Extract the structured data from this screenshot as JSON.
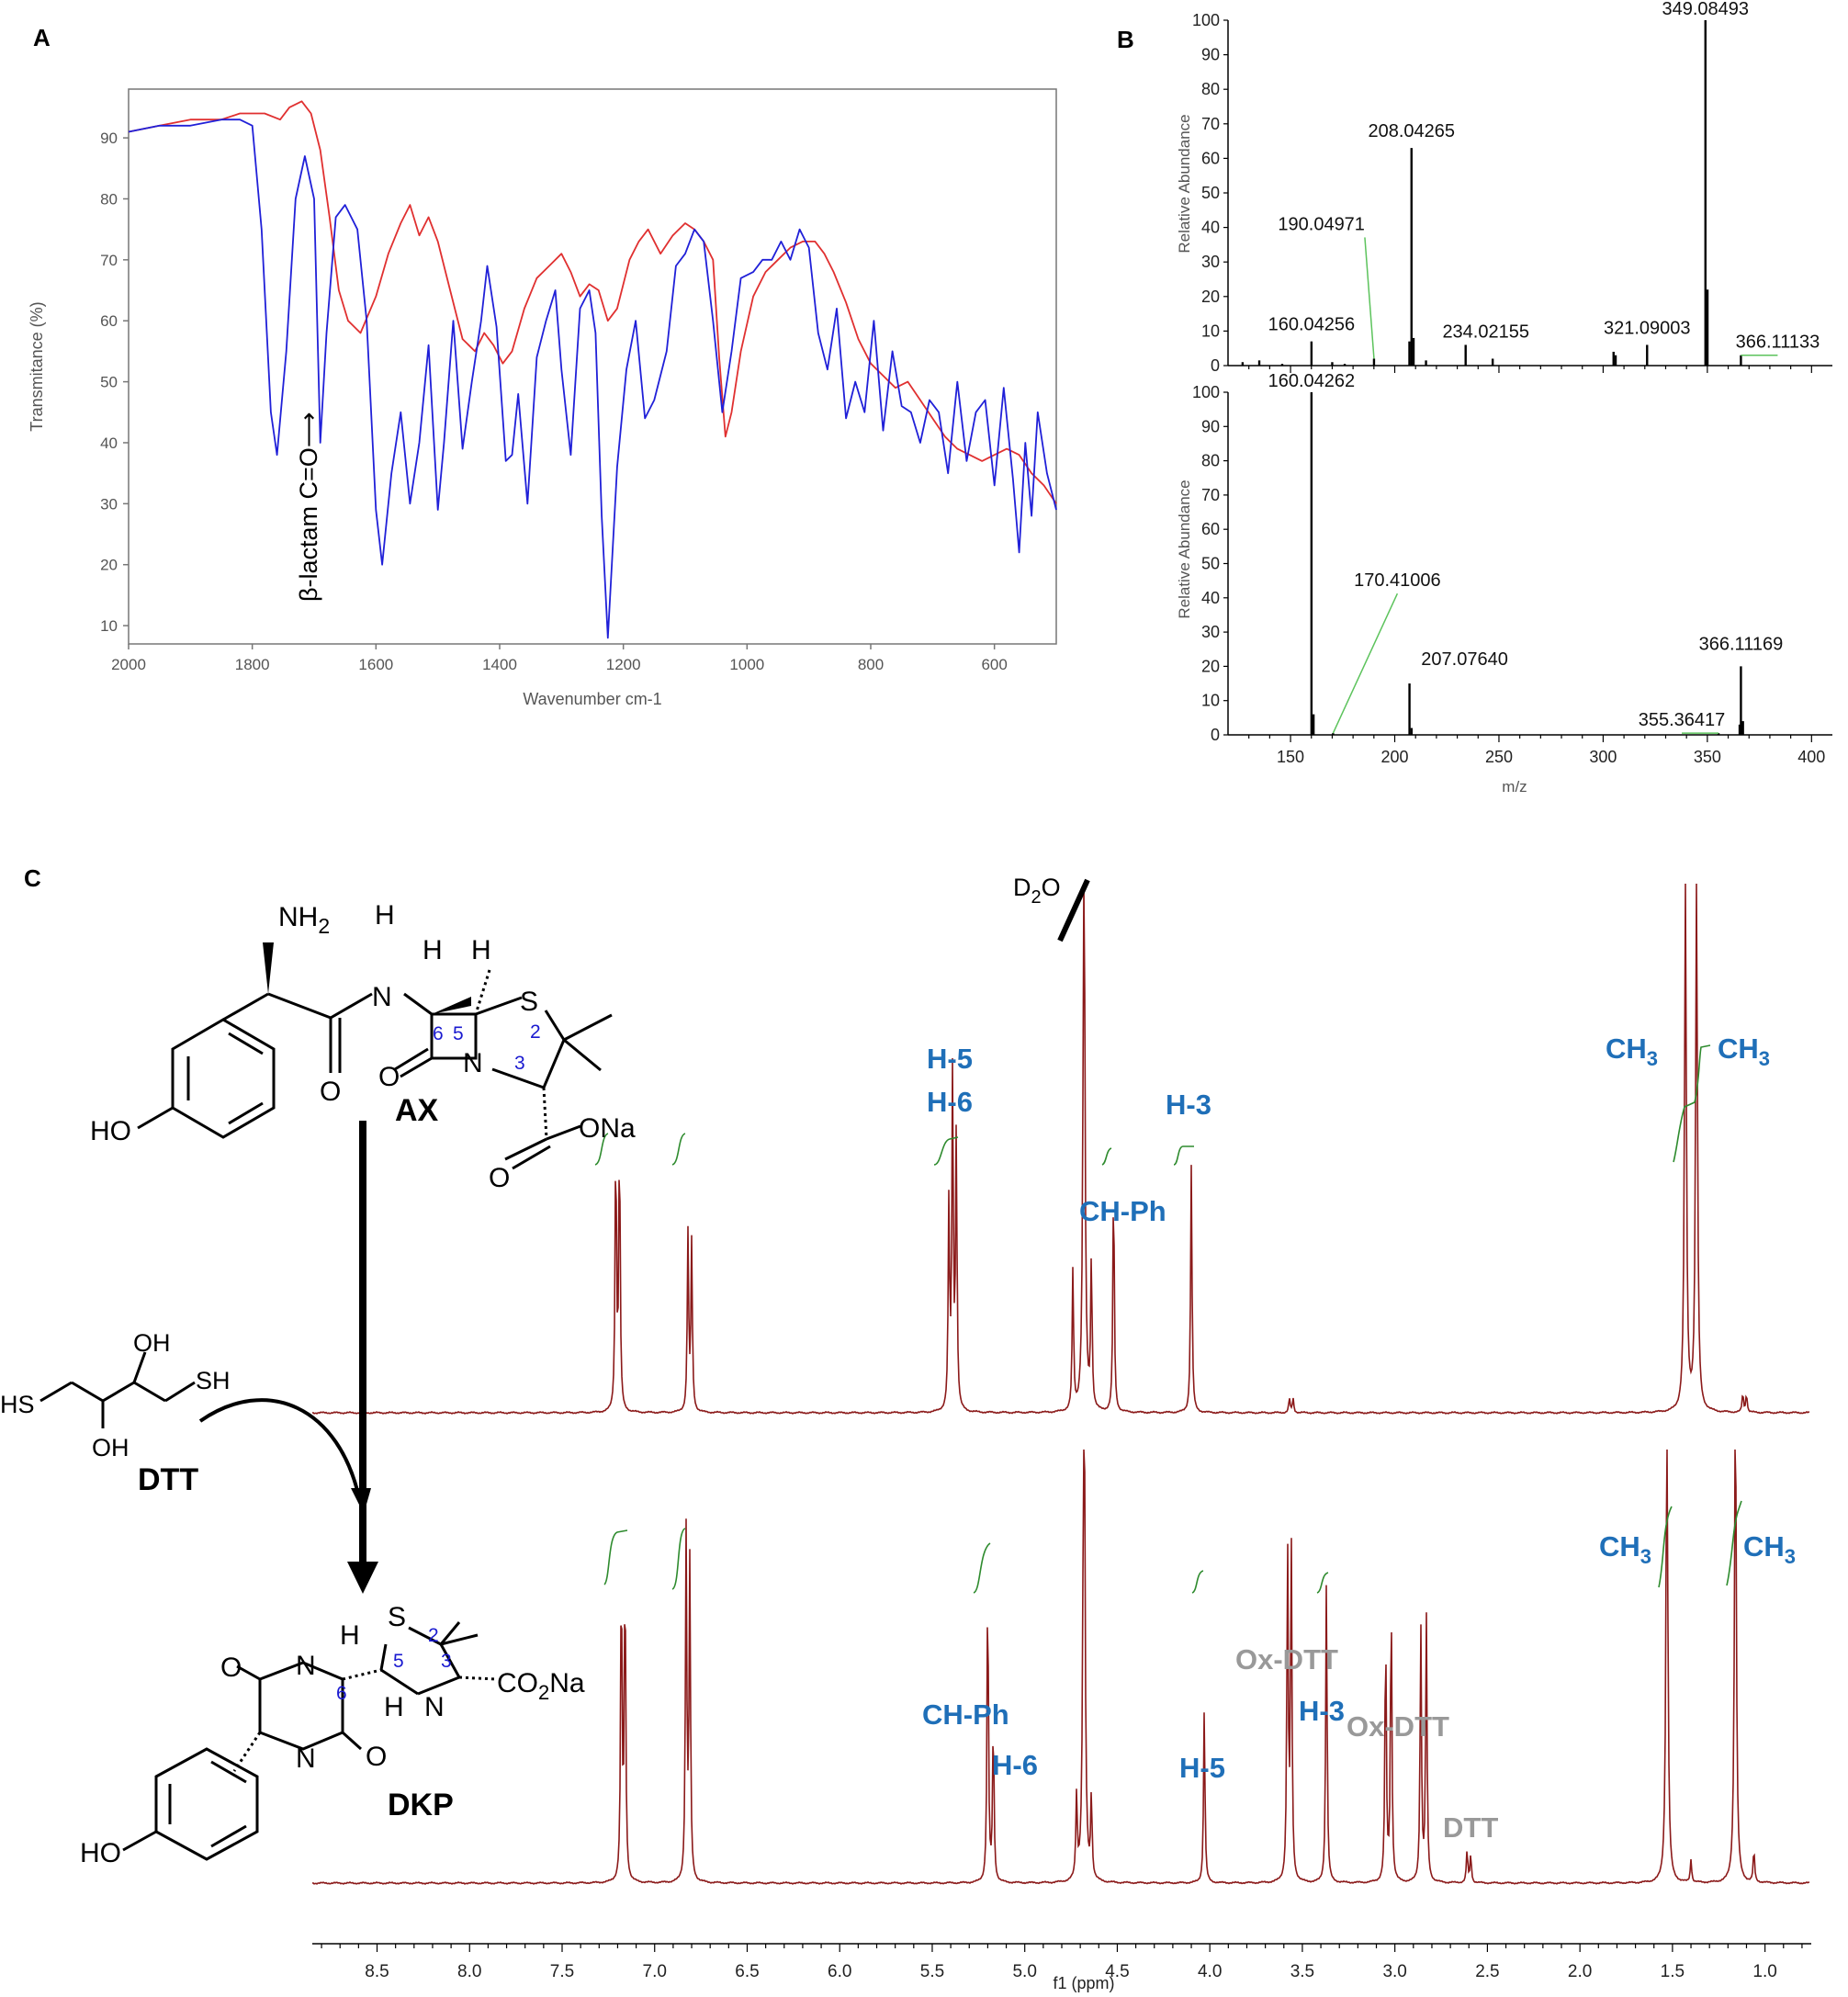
{
  "panels": {
    "a": "A",
    "b": "B",
    "c": "C"
  },
  "chart_data": [
    {
      "type": "line",
      "panel": "A",
      "xlabel": "Wavenumber cm-1",
      "ylabel": "Transmitance (%)",
      "xlim": [
        2000,
        500
      ],
      "ylim": [
        7,
        98
      ],
      "xticks": [
        "2000",
        "1800",
        "1600",
        "1400",
        "1200",
        "1000",
        "800",
        "600"
      ],
      "yticks": [
        "10",
        "20",
        "30",
        "40",
        "50",
        "60",
        "70",
        "80",
        "90"
      ],
      "annotation": "β-lactam C=O⟶",
      "series": [
        {
          "color": "#e03030",
          "x": [
            2000,
            1950,
            1900,
            1850,
            1820,
            1800,
            1780,
            1755,
            1740,
            1720,
            1705,
            1690,
            1675,
            1660,
            1645,
            1625,
            1600,
            1580,
            1560,
            1545,
            1530,
            1515,
            1500,
            1480,
            1460,
            1440,
            1425,
            1410,
            1395,
            1380,
            1360,
            1340,
            1320,
            1300,
            1285,
            1270,
            1255,
            1240,
            1225,
            1210,
            1190,
            1175,
            1160,
            1140,
            1120,
            1100,
            1085,
            1070,
            1055,
            1045,
            1035,
            1025,
            1010,
            990,
            970,
            950,
            930,
            910,
            890,
            875,
            860,
            840,
            820,
            800,
            780,
            760,
            740,
            720,
            700,
            680,
            660,
            640,
            620,
            600,
            580,
            560,
            540,
            520,
            500
          ],
          "y": [
            91,
            92,
            93,
            93,
            94,
            94,
            94,
            93,
            95,
            96,
            94,
            88,
            77,
            65,
            60,
            58,
            64,
            71,
            76,
            79,
            74,
            77,
            73,
            65,
            57,
            55,
            58,
            56,
            53,
            55,
            62,
            67,
            69,
            71,
            68,
            64,
            66,
            65,
            60,
            62,
            70,
            73,
            75,
            71,
            74,
            76,
            75,
            73,
            70,
            54,
            41,
            45,
            55,
            64,
            68,
            70,
            72,
            73,
            73,
            71,
            68,
            63,
            57,
            53,
            51,
            49,
            50,
            47,
            44,
            41,
            39,
            38,
            37,
            38,
            39,
            38,
            35,
            33,
            30
          ]
        },
        {
          "color": "#2020d8",
          "x": [
            2000,
            1950,
            1900,
            1850,
            1820,
            1800,
            1785,
            1770,
            1760,
            1745,
            1730,
            1715,
            1700,
            1690,
            1680,
            1665,
            1650,
            1630,
            1615,
            1600,
            1590,
            1575,
            1560,
            1545,
            1530,
            1515,
            1500,
            1490,
            1475,
            1460,
            1445,
            1430,
            1420,
            1405,
            1390,
            1380,
            1370,
            1355,
            1340,
            1325,
            1310,
            1300,
            1285,
            1270,
            1255,
            1245,
            1235,
            1225,
            1210,
            1195,
            1180,
            1165,
            1150,
            1130,
            1115,
            1100,
            1085,
            1070,
            1055,
            1040,
            1025,
            1010,
            990,
            975,
            960,
            945,
            930,
            915,
            900,
            885,
            870,
            855,
            840,
            825,
            810,
            795,
            780,
            765,
            750,
            735,
            720,
            705,
            690,
            675,
            660,
            645,
            630,
            615,
            600,
            585,
            570,
            560,
            550,
            540,
            530,
            515,
            500
          ],
          "y": [
            91,
            92,
            92,
            93,
            93,
            92,
            75,
            45,
            38,
            55,
            80,
            87,
            80,
            40,
            58,
            77,
            79,
            75,
            60,
            29,
            20,
            35,
            45,
            30,
            40,
            56,
            29,
            40,
            60,
            39,
            50,
            60,
            69,
            59,
            37,
            38,
            48,
            30,
            54,
            60,
            65,
            52,
            38,
            62,
            65,
            58,
            28,
            8,
            36,
            52,
            60,
            44,
            47,
            55,
            69,
            71,
            75,
            73,
            60,
            45,
            55,
            67,
            68,
            70,
            70,
            73,
            70,
            75,
            72,
            58,
            52,
            62,
            44,
            50,
            45,
            60,
            42,
            55,
            46,
            45,
            40,
            47,
            45,
            35,
            50,
            37,
            45,
            47,
            33,
            49,
            34,
            22,
            40,
            28,
            45,
            35,
            29
          ]
        }
      ]
    },
    {
      "type": "bar",
      "panel": "B-top",
      "xlabel": "m/z",
      "ylabel": "Relative Abundance",
      "xlim": [
        120,
        410
      ],
      "ylim": [
        0,
        100
      ],
      "yticks": [
        "0",
        "10",
        "20",
        "30",
        "40",
        "50",
        "60",
        "70",
        "80",
        "90",
        "100"
      ],
      "x": [
        127,
        135,
        146,
        160.04256,
        170,
        176,
        190.04971,
        207.04,
        208.04265,
        209.04,
        215,
        234.02155,
        247,
        305,
        306,
        321.09003,
        349.08493,
        350.08,
        366.11133
      ],
      "values": [
        1,
        1.5,
        0.5,
        7,
        1,
        0.5,
        2,
        7,
        63,
        8,
        1.5,
        6,
        2,
        4,
        3,
        6,
        100,
        22,
        3
      ],
      "labels": [
        {
          "text": "349.08493",
          "x": 349.08493,
          "y": 100
        },
        {
          "text": "208.04265",
          "x": 208.04265,
          "y": 63
        },
        {
          "text": "190.04971",
          "x": 190.04971,
          "y": 2
        },
        {
          "text": "160.04256",
          "x": 160.04256,
          "y": 7
        },
        {
          "text": "234.02155",
          "x": 234.02155,
          "y": 6
        },
        {
          "text": "321.09003",
          "x": 321.09003,
          "y": 6
        },
        {
          "text": "366.11133",
          "x": 366.11133,
          "y": 3
        }
      ]
    },
    {
      "type": "bar",
      "panel": "B-bottom",
      "xlabel": "m/z",
      "ylabel": "Relative Abundance",
      "xlim": [
        120,
        410
      ],
      "ylim": [
        0,
        100
      ],
      "xticks": [
        "150",
        "200",
        "250",
        "300",
        "350",
        "400"
      ],
      "yticks": [
        "0",
        "10",
        "20",
        "30",
        "40",
        "50",
        "60",
        "70",
        "80",
        "90",
        "100"
      ],
      "x": [
        160.04262,
        161.04,
        170.41006,
        207.0764,
        208.07,
        355.36417,
        365.5,
        366.11169,
        367.1
      ],
      "values": [
        100,
        6,
        0.5,
        15,
        2,
        0.5,
        3,
        20,
        4
      ],
      "labels": [
        {
          "text": "160.04262",
          "x": 160.04262,
          "y": 100
        },
        {
          "text": "170.41006",
          "x": 170.41006,
          "y": 0.5
        },
        {
          "text": "207.07640",
          "x": 207.0764,
          "y": 15
        },
        {
          "text": "366.11169",
          "x": 366.11169,
          "y": 20
        },
        {
          "text": "355.36417",
          "x": 355.36417,
          "y": 0.5
        }
      ]
    },
    {
      "type": "line",
      "panel": "C",
      "xlabel": "f1 (ppm)",
      "xlim": [
        8.85,
        0.75
      ],
      "xticks": [
        "8.5",
        "8.0",
        "7.5",
        "7.0",
        "6.5",
        "6.0",
        "5.5",
        "5.0",
        "4.5",
        "4.0",
        "3.5",
        "3.0",
        "2.5",
        "2.0",
        "1.5",
        "1.0"
      ],
      "series": [
        {
          "name": "AX",
          "color": "#8b1a1a",
          "peaks": [
            [
              7.21,
              0.58
            ],
            [
              7.19,
              0.58
            ],
            [
              6.82,
              0.38
            ],
            [
              6.8,
              0.36
            ],
            [
              5.41,
              0.44
            ],
            [
              5.39,
              0.72
            ],
            [
              5.37,
              0.59
            ],
            [
              4.74,
              0.3
            ],
            [
              4.68,
              1.3
            ],
            [
              4.64,
              0.32
            ],
            [
              4.52,
              0.5
            ],
            [
              4.1,
              0.53
            ],
            [
              3.57,
              0.03
            ],
            [
              3.55,
              0.03
            ],
            [
              1.43,
              1.15
            ],
            [
              1.37,
              1.15
            ],
            [
              1.12,
              0.04
            ],
            [
              1.1,
              0.04
            ]
          ],
          "annotations": [
            "D₂O",
            "H-5",
            "H-6",
            "H-3",
            "CH-Ph",
            "CH₃",
            "CH₃"
          ]
        },
        {
          "name": "DKP",
          "color": "#8b1a1a",
          "peaks": [
            [
              7.18,
              0.68
            ],
            [
              7.16,
              0.68
            ],
            [
              6.83,
              0.76
            ],
            [
              6.81,
              0.69
            ],
            [
              5.2,
              0.66
            ],
            [
              5.17,
              0.35
            ],
            [
              4.72,
              0.18
            ],
            [
              4.68,
              1.3
            ],
            [
              4.64,
              0.18
            ],
            [
              4.03,
              0.38
            ],
            [
              3.58,
              0.73
            ],
            [
              3.56,
              0.74
            ],
            [
              3.37,
              0.66
            ],
            [
              3.05,
              0.55
            ],
            [
              3.02,
              0.62
            ],
            [
              2.86,
              0.56
            ],
            [
              2.83,
              0.58
            ],
            [
              2.61,
              0.07
            ],
            [
              2.59,
              0.06
            ],
            [
              1.53,
              1.08
            ],
            [
              1.4,
              0.05
            ],
            [
              1.16,
              1.08
            ],
            [
              1.06,
              0.07
            ]
          ],
          "annotations": [
            "CH-Ph",
            "H-6",
            "H-5",
            "H-3",
            "Ox-DTT",
            "Ox-DTT",
            "DTT",
            "CH₃",
            "CH₃"
          ]
        }
      ]
    }
  ],
  "structures": {
    "ax": {
      "name": "AX",
      "nh2": "NH",
      "nh2_sub": "2",
      "ho": "HO",
      "h": "H",
      "s": "S",
      "n": "N",
      "o": "O",
      "ona": "ONa",
      "n6": "6",
      "n5": "5",
      "n2": "2",
      "n3": "3"
    },
    "dtt": {
      "name": "DTT",
      "hs": "HS",
      "sh": "SH",
      "oh": "OH"
    },
    "dkp": {
      "name": "DKP",
      "co2na_a": "CO",
      "co2na_sub": "2",
      "co2na_b": "Na",
      "h": "H",
      "s": "S",
      "n": "N",
      "o": "O",
      "ho": "HO",
      "n6": "6",
      "n5": "5",
      "n2": "2",
      "n3": "3"
    }
  },
  "nmr_labels": {
    "d2o_a": "D",
    "d2o_sub": "2",
    "d2o_b": "O",
    "h5": "H-5",
    "h6": "H-6",
    "h3": "H-3",
    "chph": "CH-Ph",
    "ch3": "CH",
    "ch3_sub": "3",
    "oxdtt": "Ox-DTT",
    "dtt": "DTT"
  }
}
